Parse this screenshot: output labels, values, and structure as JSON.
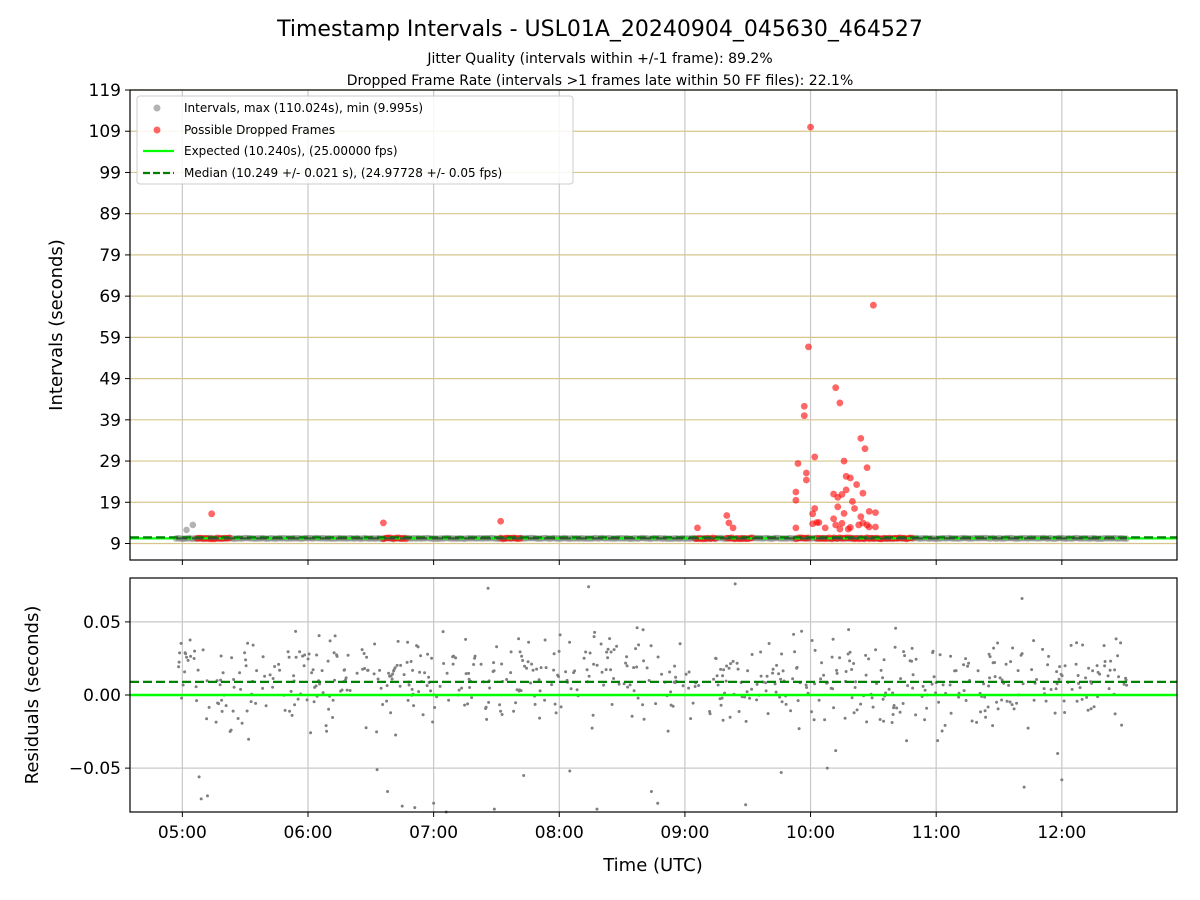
{
  "chart_data": [
    {
      "type": "scatter",
      "title": "Timestamp Intervals - USL01A_20240904_045630_464527",
      "subtitle_lines": [
        "Jitter Quality (intervals within +/-1 frame): 89.2%",
        "Dropped Frame Rate (intervals >1 frames late within 50 FF files): 22.1%"
      ],
      "xlabel": "",
      "ylabel": "Intervals (seconds)",
      "xlim": [
        "04:35",
        "12:55"
      ],
      "ylim": [
        5,
        119
      ],
      "x_ticks": [
        "05:00",
        "06:00",
        "07:00",
        "08:00",
        "09:00",
        "10:00",
        "11:00",
        "12:00"
      ],
      "y_ticks": [
        9,
        19,
        29,
        39,
        49,
        59,
        69,
        79,
        89,
        99,
        109,
        119
      ],
      "grid": "vertical gridlines gray, horizontal gridlines tan",
      "legend_position": "upper-left",
      "series": [
        {
          "name": "Intervals, max (110.024s), min (9.995s)",
          "color": "#808080",
          "note_style": "gray dots forming a band",
          "x_range": [
            "04:57",
            "12:31"
          ],
          "values": [
            10.25
          ],
          "outliers": [
            {
              "x": "05:02",
              "y": 12.3
            },
            {
              "x": "05:05",
              "y": 13.5
            }
          ]
        },
        {
          "name": "Possible Dropped Frames",
          "color": "#ff0000",
          "clusters": [
            {
              "from": "05:07",
              "to": "05:23"
            },
            {
              "from": "06:36",
              "to": "06:47"
            },
            {
              "from": "07:32",
              "to": "07:42"
            },
            {
              "from": "09:05",
              "to": "09:15"
            },
            {
              "from": "09:20",
              "to": "09:32"
            },
            {
              "from": "09:53",
              "to": "09:59"
            },
            {
              "from": "10:03",
              "to": "10:49"
            }
          ],
          "points": [
            {
              "x": "05:14",
              "y": 16.2
            },
            {
              "x": "06:36",
              "y": 14.0
            },
            {
              "x": "07:32",
              "y": 14.4
            },
            {
              "x": "09:06",
              "y": 12.8
            },
            {
              "x": "09:20",
              "y": 15.8
            },
            {
              "x": "09:21",
              "y": 14.0
            },
            {
              "x": "09:23",
              "y": 12.8
            },
            {
              "x": "09:53",
              "y": 12.8
            },
            {
              "x": "09:53",
              "y": 19.5
            },
            {
              "x": "09:53",
              "y": 21.5
            },
            {
              "x": "09:54",
              "y": 28.4
            },
            {
              "x": "09:57",
              "y": 40.0
            },
            {
              "x": "09:57",
              "y": 42.3
            },
            {
              "x": "09:58",
              "y": 24.4
            },
            {
              "x": "09:58",
              "y": 26.1
            },
            {
              "x": "09:59",
              "y": 56.7
            },
            {
              "x": "10:00",
              "y": 110.0
            },
            {
              "x": "10:01",
              "y": 13.8
            },
            {
              "x": "10:01",
              "y": 16.2
            },
            {
              "x": "10:02",
              "y": 17.5
            },
            {
              "x": "10:02",
              "y": 30.0
            },
            {
              "x": "10:03",
              "y": 14.1
            },
            {
              "x": "10:04",
              "y": 14.1
            },
            {
              "x": "10:07",
              "y": 12.8
            },
            {
              "x": "10:11",
              "y": 21.0
            },
            {
              "x": "10:11",
              "y": 15.0
            },
            {
              "x": "10:12",
              "y": 46.8
            },
            {
              "x": "10:12",
              "y": 13.5
            },
            {
              "x": "10:13",
              "y": 20.2
            },
            {
              "x": "10:13",
              "y": 17.9
            },
            {
              "x": "10:14",
              "y": 12.5
            },
            {
              "x": "10:14",
              "y": 43.1
            },
            {
              "x": "10:15",
              "y": 20.9
            },
            {
              "x": "10:15",
              "y": 13.9
            },
            {
              "x": "10:16",
              "y": 29.0
            },
            {
              "x": "10:16",
              "y": 16.3
            },
            {
              "x": "10:17",
              "y": 25.3
            },
            {
              "x": "10:17",
              "y": 22.0
            },
            {
              "x": "10:18",
              "y": 12.5
            },
            {
              "x": "10:19",
              "y": 24.9
            },
            {
              "x": "10:19",
              "y": 12.9
            },
            {
              "x": "10:20",
              "y": 19.2
            },
            {
              "x": "10:21",
              "y": 17.5
            },
            {
              "x": "10:22",
              "y": 23.3
            },
            {
              "x": "10:23",
              "y": 13.5
            },
            {
              "x": "10:24",
              "y": 34.5
            },
            {
              "x": "10:24",
              "y": 15.5
            },
            {
              "x": "10:25",
              "y": 21.2
            },
            {
              "x": "10:25",
              "y": 14.0
            },
            {
              "x": "10:26",
              "y": 32.0
            },
            {
              "x": "10:27",
              "y": 27.4
            },
            {
              "x": "10:27",
              "y": 13.5
            },
            {
              "x": "10:28",
              "y": 16.8
            },
            {
              "x": "10:28",
              "y": 13.0
            },
            {
              "x": "10:30",
              "y": 66.8
            },
            {
              "x": "10:31",
              "y": 16.5
            },
            {
              "x": "10:31",
              "y": 13.0
            }
          ]
        },
        {
          "name": "Expected (10.240s), (25.00000 fps)",
          "color": "#00ff00",
          "line_style": "solid",
          "values": [
            10.24
          ]
        },
        {
          "name": "Median (10.249 +/- 0.021 s), (24.97728 +/- 0.05 fps)",
          "color": "#008000",
          "line_style": "dashed",
          "values": [
            10.249
          ]
        }
      ]
    },
    {
      "type": "scatter",
      "title": "",
      "xlabel": "Time (UTC)",
      "ylabel": "Residuals (seconds)",
      "xlim": [
        "04:35",
        "12:55"
      ],
      "ylim": [
        -0.08,
        0.08
      ],
      "x_ticks": [
        "05:00",
        "06:00",
        "07:00",
        "08:00",
        "09:00",
        "10:00",
        "11:00",
        "12:00"
      ],
      "y_ticks": [
        "-0.05",
        "0.00",
        "0.05"
      ],
      "grid": "both",
      "series": [
        {
          "name": "Residuals",
          "color": "#7f7f7f",
          "note_style": "gray points scattered around zero",
          "x_range": [
            "04:57",
            "12:31"
          ],
          "typical_spread": [
            -0.03,
            0.04
          ],
          "outliers": [
            {
              "x": "05:08",
              "y": -0.056
            },
            {
              "x": "05:09",
              "y": -0.071
            },
            {
              "x": "05:12",
              "y": -0.069
            },
            {
              "x": "06:33",
              "y": -0.051
            },
            {
              "x": "06:38",
              "y": -0.066
            },
            {
              "x": "06:45",
              "y": -0.076
            },
            {
              "x": "06:51",
              "y": -0.077
            },
            {
              "x": "07:00",
              "y": -0.074
            },
            {
              "x": "07:06",
              "y": -0.08
            },
            {
              "x": "07:26",
              "y": 0.073
            },
            {
              "x": "07:29",
              "y": -0.078
            },
            {
              "x": "07:43",
              "y": -0.055
            },
            {
              "x": "08:05",
              "y": -0.052
            },
            {
              "x": "08:14",
              "y": 0.074
            },
            {
              "x": "08:18",
              "y": -0.078
            },
            {
              "x": "08:44",
              "y": -0.066
            },
            {
              "x": "08:47",
              "y": -0.074
            },
            {
              "x": "09:24",
              "y": 0.076
            },
            {
              "x": "09:29",
              "y": -0.075
            },
            {
              "x": "09:46",
              "y": -0.053
            },
            {
              "x": "10:08",
              "y": -0.05
            },
            {
              "x": "10:12",
              "y": -0.038
            },
            {
              "x": "11:41",
              "y": 0.066
            },
            {
              "x": "11:42",
              "y": -0.063
            },
            {
              "x": "11:58",
              "y": -0.04
            },
            {
              "x": "12:00",
              "y": -0.058
            }
          ]
        },
        {
          "name": "Expected",
          "color": "#00ff00",
          "line_style": "solid",
          "values": [
            0.0
          ]
        },
        {
          "name": "Median offset",
          "color": "#008000",
          "line_style": "dashed",
          "values": [
            0.009
          ]
        }
      ]
    }
  ]
}
